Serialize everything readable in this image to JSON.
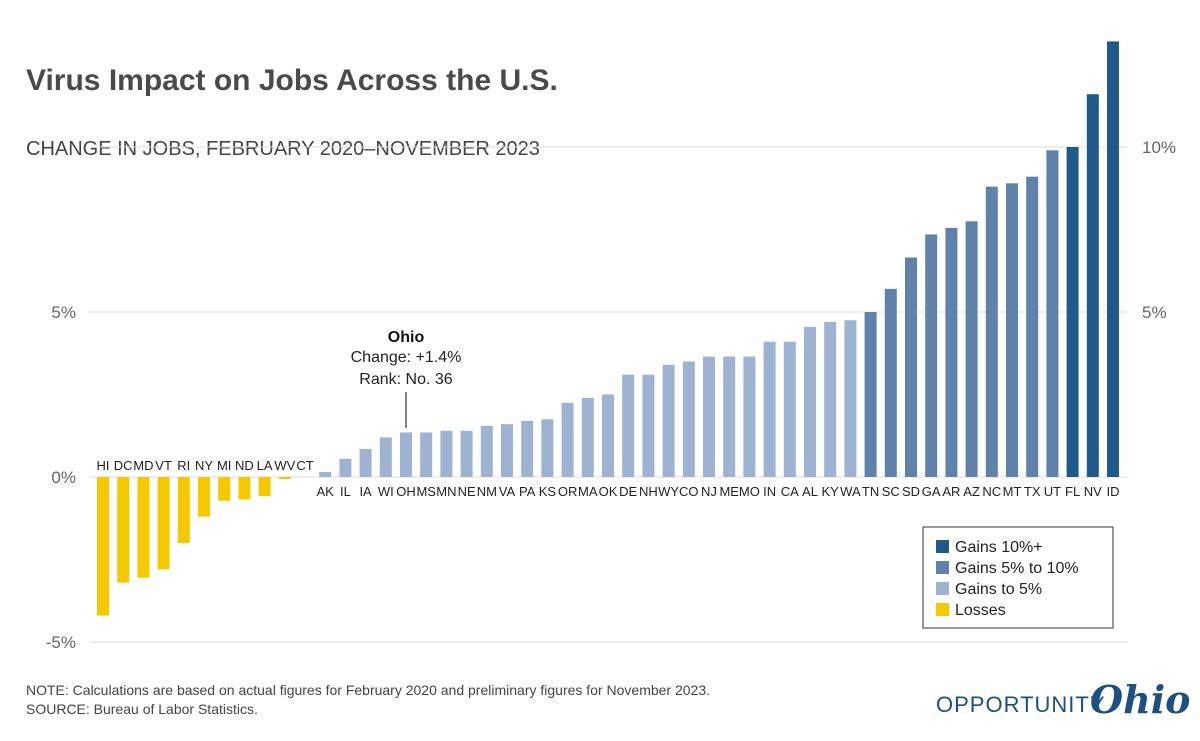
{
  "title": "Virus Impact on Jobs Across the U.S.",
  "subtitle": "CHANGE IN JOBS, FEBRUARY 2020–NOVEMBER 2023",
  "note": "NOTE: Calculations are based on actual figures for February 2020 and preliminary figures for November 2023.",
  "source": "SOURCE: Bureau of Labor Statistics.",
  "brand": {
    "word": "OPPORTUNITY",
    "script": "Ohio"
  },
  "annotation": {
    "heading": "Ohio",
    "line1": "Change: +1.4%",
    "line2": "Rank: No. 36",
    "state": "OH"
  },
  "legend": {
    "position": "bottom-right",
    "items": [
      {
        "label": "Gains 10%+",
        "color": "#1f5a8b"
      },
      {
        "label": "Gains 5% to 10%",
        "color": "#5f82ab"
      },
      {
        "label": "Gains to 5%",
        "color": "#9db3d1"
      },
      {
        "label": "Losses",
        "color": "#f6c800"
      }
    ]
  },
  "chart_data": {
    "type": "bar",
    "title": "Virus Impact on Jobs Across the U.S.",
    "subtitle": "CHANGE IN JOBS, FEBRUARY 2020–NOVEMBER 2023",
    "ylim": [
      -5,
      10
    ],
    "yticks": [
      -5,
      0,
      5,
      10
    ],
    "ytick_labels_left": [
      "-5%",
      "0%",
      "5%",
      ""
    ],
    "ytick_labels_right": [
      "",
      "",
      "5%",
      "10%"
    ],
    "grid": true,
    "categories": [
      "HI",
      "DC",
      "MD",
      "VT",
      "RI",
      "NY",
      "MI",
      "ND",
      "LA",
      "WV",
      "CT",
      "AK",
      "IL",
      "IA",
      "WI",
      "OH",
      "MS",
      "MN",
      "NE",
      "NM",
      "VA",
      "PA",
      "KS",
      "OR",
      "MA",
      "OK",
      "DE",
      "NH",
      "WY",
      "CO",
      "NJ",
      "ME",
      "MO",
      "IN",
      "CA",
      "AL",
      "KY",
      "WA",
      "TN",
      "SC",
      "SD",
      "GA",
      "AR",
      "AZ",
      "NC",
      "MT",
      "TX",
      "UT",
      "FL",
      "NV",
      "ID"
    ],
    "values": [
      -4.2,
      -3.2,
      -3.05,
      -2.8,
      -2.0,
      -1.2,
      -0.72,
      -0.68,
      -0.58,
      -0.05,
      0.0,
      0.15,
      0.55,
      0.85,
      1.2,
      1.35,
      1.35,
      1.4,
      1.4,
      1.55,
      1.6,
      1.7,
      1.75,
      2.25,
      2.4,
      2.5,
      3.1,
      3.1,
      3.4,
      3.5,
      3.65,
      3.65,
      3.65,
      4.1,
      4.1,
      4.55,
      4.7,
      4.75,
      5.0,
      5.7,
      6.65,
      7.35,
      7.55,
      7.75,
      8.8,
      8.9,
      9.1,
      9.9,
      10.0,
      11.6,
      13.2
    ],
    "series_colors": {
      "gain10": "#1f5a8b",
      "gain5to10": "#5f82ab",
      "gainTo5": "#9db3d1",
      "loss": "#f6c800"
    }
  }
}
